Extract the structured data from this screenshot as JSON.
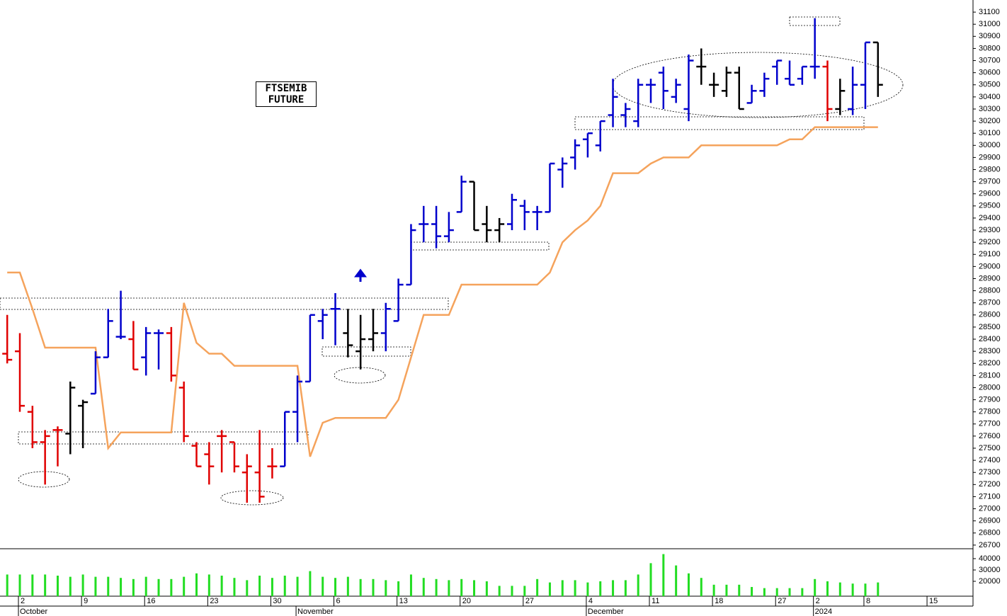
{
  "chart_data": [
    {
      "type": "ohlc",
      "title": "FTSEMIB FUTURE",
      "open": [
        28280,
        28300,
        27800,
        27550,
        27650,
        27620,
        27850,
        27950,
        28250,
        28420,
        28400,
        28250,
        28450,
        28450,
        28000,
        27520,
        27450,
        27600,
        27550,
        27300,
        27300,
        27350,
        27350,
        27800,
        28050,
        28550,
        28650,
        28450,
        28300,
        28400,
        28450,
        28550,
        28850,
        29350,
        29350,
        29250,
        29450,
        29700,
        29350,
        29300,
        29350,
        29500,
        29450,
        29450,
        29800,
        29900,
        30050,
        30000,
        30250,
        30250,
        30200,
        30500,
        30600,
        30400,
        30300,
        30650,
        30500,
        30450,
        30600,
        30350,
        30450,
        30650,
        30550,
        30550,
        30650,
        30650,
        30300,
        30300,
        30500,
        30850
      ],
      "high": [
        28600,
        28450,
        27850,
        27650,
        27680,
        28050,
        27900,
        28300,
        28650,
        28800,
        28550,
        28500,
        28480,
        28500,
        28050,
        27550,
        27550,
        27650,
        27550,
        27450,
        27650,
        27500,
        27800,
        28100,
        28600,
        28650,
        28780,
        28650,
        28600,
        28650,
        28700,
        28900,
        29350,
        29500,
        29500,
        29450,
        29750,
        29700,
        29500,
        29400,
        29600,
        29550,
        29500,
        29850,
        29900,
        30050,
        30100,
        30200,
        30550,
        30350,
        30550,
        30550,
        30650,
        30550,
        30750,
        30800,
        30600,
        30650,
        30650,
        30500,
        30600,
        30700,
        30700,
        30650,
        31050,
        30700,
        30550,
        30650,
        30850,
        30850
      ],
      "low": [
        28200,
        27800,
        27500,
        27200,
        27350,
        27450,
        27500,
        27950,
        28250,
        28400,
        28150,
        28100,
        28150,
        28050,
        27550,
        27350,
        27200,
        27300,
        27300,
        27050,
        27050,
        27250,
        27350,
        27550,
        28050,
        28400,
        28350,
        28250,
        28150,
        28300,
        28300,
        28550,
        28850,
        29200,
        29150,
        29200,
        29450,
        29300,
        29200,
        29200,
        29300,
        29300,
        29300,
        29450,
        29650,
        29800,
        29900,
        29950,
        30150,
        30150,
        30150,
        30350,
        30300,
        30350,
        30200,
        30500,
        30400,
        30400,
        30300,
        30350,
        30400,
        30500,
        30500,
        30500,
        30550,
        30200,
        30250,
        30250,
        30300,
        30400
      ],
      "close": [
        28230,
        27850,
        27550,
        27600,
        27650,
        28000,
        27880,
        28250,
        28550,
        28420,
        28150,
        28450,
        28450,
        28100,
        27600,
        27350,
        27350,
        27600,
        27350,
        27350,
        27100,
        27350,
        27800,
        28050,
        28600,
        28600,
        28650,
        28350,
        28400,
        28450,
        28650,
        28850,
        29300,
        29350,
        29250,
        29300,
        29700,
        29300,
        29300,
        29350,
        29550,
        29450,
        29450,
        29850,
        29850,
        30000,
        30100,
        30200,
        30400,
        30300,
        30500,
        30500,
        30450,
        30500,
        30700,
        30650,
        30500,
        30600,
        30300,
        30450,
        30550,
        30700,
        30500,
        30650,
        30650,
        30300,
        30450,
        30500,
        30850,
        30500
      ],
      "colors": [
        "#e00000",
        "#e00000",
        "#e00000",
        "#e00000",
        "#e00000",
        "#000000",
        "#000000",
        "#0000cc",
        "#0000cc",
        "#0000cc",
        "#e00000",
        "#0000cc",
        "#0000cc",
        "#e00000",
        "#e00000",
        "#e00000",
        "#e00000",
        "#e00000",
        "#e00000",
        "#e00000",
        "#e00000",
        "#e00000",
        "#0000cc",
        "#0000cc",
        "#0000cc",
        "#0000cc",
        "#0000cc",
        "#000000",
        "#000000",
        "#000000",
        "#0000cc",
        "#0000cc",
        "#0000cc",
        "#0000cc",
        "#0000cc",
        "#0000cc",
        "#0000cc",
        "#000000",
        "#000000",
        "#000000",
        "#0000cc",
        "#0000cc",
        "#0000cc",
        "#0000cc",
        "#0000cc",
        "#0000cc",
        "#0000cc",
        "#0000cc",
        "#0000cc",
        "#0000cc",
        "#0000cc",
        "#0000cc",
        "#0000cc",
        "#0000cc",
        "#0000cc",
        "#000000",
        "#000000",
        "#000000",
        "#000000",
        "#0000cc",
        "#0000cc",
        "#0000cc",
        "#0000cc",
        "#0000cc",
        "#0000cc",
        "#e00000",
        "#000000",
        "#0000cc",
        "#0000cc",
        "#000000"
      ],
      "stop_line": {
        "color": "#f5a35c",
        "values": [
          28950,
          28950,
          28650,
          28330,
          28330,
          28330,
          28330,
          28330,
          27500,
          27630,
          27630,
          27630,
          27630,
          27630,
          28700,
          28370,
          28280,
          28280,
          28180,
          28180,
          28180,
          28180,
          28180,
          28180,
          27430,
          27710,
          27750,
          27750,
          27750,
          27750,
          27750,
          27900,
          28250,
          28600,
          28600,
          28600,
          28850,
          28850,
          28850,
          28850,
          28850,
          28850,
          28850,
          28950,
          29200,
          29300,
          29380,
          29500,
          29770,
          29770,
          29770,
          29850,
          29900,
          29900,
          29900,
          30000,
          30000,
          30000,
          30000,
          30000,
          30000,
          30000,
          30050,
          30050,
          30150,
          30150,
          30150,
          30150,
          30150,
          30150
        ]
      },
      "ylim": [
        26670,
        31200
      ],
      "yticks": [
        26700,
        26800,
        26900,
        27000,
        27100,
        27200,
        27300,
        27400,
        27500,
        27600,
        27700,
        27800,
        27900,
        28000,
        28100,
        28200,
        28300,
        28400,
        28500,
        28600,
        28700,
        28800,
        28900,
        29000,
        29100,
        29200,
        29300,
        29400,
        29500,
        29600,
        29700,
        29800,
        29900,
        30000,
        30100,
        30200,
        30300,
        30400,
        30500,
        30600,
        30700,
        30800,
        30900,
        31000,
        31100
      ],
      "xticks": [
        {
          "value": 1,
          "label": "2"
        },
        {
          "value": 6,
          "label": "9"
        },
        {
          "value": 11,
          "label": "16"
        },
        {
          "value": 16,
          "label": "23"
        },
        {
          "value": 21,
          "label": "30"
        },
        {
          "value": 26,
          "label": "6"
        },
        {
          "value": 31,
          "label": "13"
        },
        {
          "value": 36,
          "label": "20"
        },
        {
          "value": 41,
          "label": "27"
        },
        {
          "value": 46,
          "label": "4"
        },
        {
          "value": 51,
          "label": "11"
        },
        {
          "value": 56,
          "label": "18"
        },
        {
          "value": 61,
          "label": "27"
        },
        {
          "value": 64,
          "label": "2"
        },
        {
          "value": 68,
          "label": "8"
        },
        {
          "value": 73,
          "label": "15"
        }
      ],
      "months": [
        {
          "value": 1,
          "label": "October"
        },
        {
          "value": 23,
          "label": "November"
        },
        {
          "value": 46,
          "label": "December"
        },
        {
          "value": 64,
          "label": "2024"
        }
      ]
    },
    {
      "type": "bar",
      "color": "#22dd22",
      "values": [
        26000,
        26000,
        26000,
        26000,
        25000,
        24000,
        26000,
        24000,
        24000,
        23000,
        22000,
        24000,
        22000,
        22000,
        24000,
        27000,
        26000,
        25000,
        23000,
        21000,
        25000,
        23000,
        25000,
        24000,
        29000,
        24000,
        23000,
        24000,
        22000,
        22000,
        21000,
        20000,
        26000,
        23000,
        22000,
        21000,
        22000,
        21000,
        20000,
        16000,
        16000,
        16000,
        22000,
        19000,
        21000,
        21000,
        19000,
        20000,
        21000,
        21000,
        26000,
        36000,
        44000,
        34000,
        27000,
        23000,
        17000,
        17000,
        17000,
        15000,
        14000,
        14000,
        14000,
        14000,
        22000,
        20000,
        19000,
        18000,
        18000,
        19000
      ],
      "ylim": [
        6900,
        48100
      ],
      "yticks": [
        20000,
        30000,
        40000
      ]
    }
  ]
}
